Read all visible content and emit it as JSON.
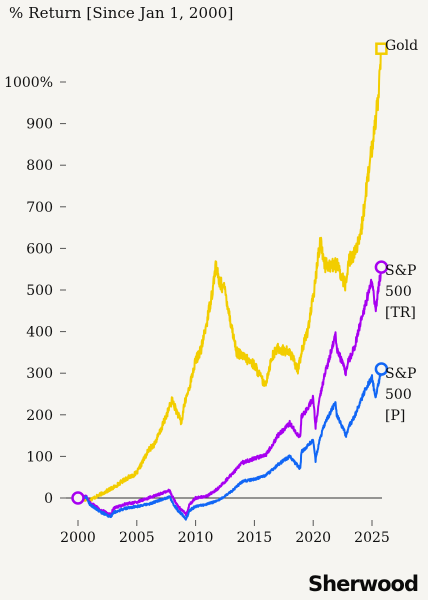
{
  "chart_title": "% Return [Since Jan 1, 2000]",
  "brand": "Sherwood",
  "chart_data": {
    "type": "line",
    "title": "% Return [Since Jan 1, 2000]",
    "xlabel": "",
    "ylabel": "",
    "xlim": [
      1999.6,
      2026.4
    ],
    "ylim": [
      -50,
      1070
    ],
    "x_ticks": [
      "2000",
      "2005",
      "2010",
      "2015",
      "2020",
      "2025"
    ],
    "y_ticks": [
      "0",
      "100",
      "200",
      "300",
      "400",
      "500",
      "600",
      "700",
      "800",
      "900",
      "1000%"
    ],
    "grid": false,
    "legend": "line end labels",
    "series": [
      {
        "name": "Gold",
        "color": "#f2cd00",
        "marker": "square",
        "x": [
          2000,
          2001,
          2002,
          2003,
          2004,
          2005,
          2006,
          2006.5,
          2007,
          2008,
          2008.8,
          2009,
          2009.5,
          2010,
          2010.5,
          2011,
          2011.5,
          2011.7,
          2012,
          2012.5,
          2013,
          2013.5,
          2014,
          2015,
          2015.9,
          2016.5,
          2017,
          2018,
          2018.7,
          2019,
          2019.5,
          2020,
          2020.6,
          2021,
          2022,
          2022.8,
          2023,
          2023.5,
          2024,
          2024.5,
          2025,
          2025.5,
          2025.8
        ],
        "values": [
          0,
          -5,
          10,
          25,
          45,
          60,
          115,
          130,
          160,
          235,
          180,
          220,
          270,
          330,
          360,
          430,
          510,
          560,
          520,
          500,
          420,
          350,
          340,
          320,
          270,
          340,
          360,
          350,
          310,
          350,
          400,
          480,
          620,
          560,
          560,
          510,
          570,
          590,
          620,
          740,
          840,
          960,
          1080
        ]
      },
      {
        "name": "S&P 500 [TR]",
        "color": "#a700f0",
        "marker": "circle",
        "x": [
          2000,
          2000.7,
          2001,
          2002,
          2002.8,
          2003,
          2004,
          2005,
          2006,
          2007,
          2007.8,
          2008,
          2008.5,
          2009.2,
          2009.5,
          2010,
          2011,
          2012,
          2013,
          2014,
          2015,
          2016,
          2017,
          2018,
          2018.9,
          2019,
          2019.5,
          2020,
          2020.2,
          2020.5,
          2021,
          2021.9,
          2022,
          2022.8,
          2023,
          2023.5,
          2024,
          2024.5,
          2025,
          2025.3,
          2025.8
        ],
        "values": [
          0,
          5,
          -10,
          -30,
          -40,
          -25,
          -15,
          -10,
          0,
          10,
          18,
          5,
          -20,
          -40,
          -15,
          0,
          5,
          25,
          55,
          85,
          95,
          105,
          150,
          180,
          145,
          195,
          215,
          240,
          170,
          230,
          300,
          390,
          360,
          300,
          330,
          360,
          420,
          470,
          530,
          450,
          555
        ]
      },
      {
        "name": "S&P 500 [P]",
        "color": "#1166f5",
        "marker": "circle",
        "x": [
          2000,
          2000.7,
          2001,
          2002,
          2002.8,
          2003,
          2004,
          2005,
          2006,
          2007,
          2007.8,
          2008,
          2008.5,
          2009.2,
          2009.5,
          2010,
          2011,
          2012,
          2013,
          2014,
          2015,
          2016,
          2017,
          2018,
          2018.9,
          2019,
          2019.5,
          2020,
          2020.2,
          2020.5,
          2021,
          2021.9,
          2022,
          2022.8,
          2023,
          2023.5,
          2024,
          2024.5,
          2025,
          2025.3,
          2025.8
        ],
        "values": [
          0,
          2,
          -15,
          -35,
          -45,
          -35,
          -25,
          -20,
          -15,
          -5,
          3,
          -10,
          -30,
          -50,
          -30,
          -20,
          -15,
          -5,
          15,
          40,
          45,
          55,
          80,
          100,
          70,
          110,
          125,
          140,
          90,
          135,
          180,
          230,
          200,
          150,
          170,
          195,
          230,
          265,
          290,
          240,
          310
        ]
      }
    ]
  },
  "labels": {
    "gold": [
      "Gold"
    ],
    "sp_tr": [
      "S&P",
      "500",
      "[TR]"
    ],
    "sp_p": [
      "S&P",
      "500",
      "[P]"
    ]
  }
}
